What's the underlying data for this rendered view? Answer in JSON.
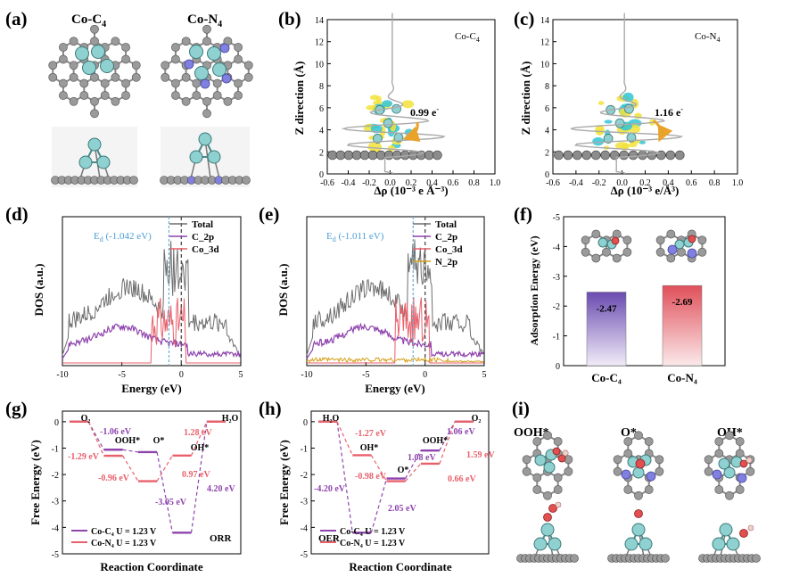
{
  "colors": {
    "purple": "#8e44ad",
    "red": "#e8606a",
    "gray_line": "#6e6e6e",
    "blue_dash": "#6baed6",
    "black_dash": "#555555",
    "orange": "#e9a32a",
    "yellow_iso": "#f2e23a",
    "cyan_iso": "#33c4d6",
    "atom_c": "#9a9a9a",
    "atom_co": "#8fd0d0",
    "atom_n": "#8080e0"
  },
  "panels": {
    "a": {
      "label": "(a)",
      "sub_left": "Co-C",
      "sub_left_sub": "4",
      "sub_right": "Co-N",
      "sub_right_sub": "4"
    },
    "b": {
      "label": "(b)",
      "tag": "Co-C",
      "tag_sub": "4",
      "charge": "0.99 e",
      "charge_sup": "-"
    },
    "c": {
      "label": "(c)",
      "tag": "Co-N",
      "tag_sub": "4",
      "charge": "1.16 e",
      "charge_sup": "-"
    },
    "d": {
      "label": "(d)",
      "ed_label": "E",
      "ed_sub": "d",
      "ed_value": " (-1.042 eV)"
    },
    "e": {
      "label": "(e)",
      "ed_label": "E",
      "ed_sub": "d",
      "ed_value": " (-1.011 eV)"
    },
    "f": {
      "label": "(f)"
    },
    "g": {
      "label": "(g)"
    },
    "h": {
      "label": "(h)"
    },
    "i": {
      "label": "(i)",
      "ads": [
        "OOH*",
        "O*",
        "OH*"
      ]
    }
  },
  "chart_data": [
    {
      "panel": "b",
      "type": "line",
      "xlabel": "Δρ (10⁻³ e Å⁻³)",
      "ylabel": "Z direction (Å)",
      "xlim": [
        -0.6,
        1.0
      ],
      "ylim": [
        0,
        14
      ],
      "x_ticks": [
        "-0.6",
        "-0.4",
        "-0.2",
        "0.0",
        "0.2",
        "0.4",
        "0.6",
        "0.8",
        "1.0"
      ],
      "y_ticks": [
        "0",
        "2",
        "4",
        "6",
        "8",
        "10",
        "12",
        "14"
      ],
      "annotation": "0.99 e⁻"
    },
    {
      "panel": "c",
      "type": "line",
      "xlabel": "Δρ (10⁻³ e/Å³)",
      "ylabel": "Z direction (Å)",
      "xlim": [
        -0.6,
        1.0
      ],
      "ylim": [
        0,
        14
      ],
      "x_ticks": [
        "-0.6",
        "-0.4",
        "-0.2",
        "0.0",
        "0.2",
        "0.4",
        "0.6",
        "0.8",
        "1.0"
      ],
      "y_ticks": [
        "0",
        "2",
        "4",
        "6",
        "8",
        "10",
        "12",
        "14"
      ],
      "annotation": "1.16 e⁻"
    },
    {
      "panel": "d",
      "type": "line",
      "xlabel": "Energy (eV)",
      "ylabel": "DOS (a.u.)",
      "xlim": [
        -10,
        5
      ],
      "x_ticks": [
        "-10",
        "-5",
        "0",
        "5"
      ],
      "series": [
        {
          "name": "Total"
        },
        {
          "name": "C_2p"
        },
        {
          "name": "Co_3d"
        }
      ],
      "d_band_center": -1.042
    },
    {
      "panel": "e",
      "type": "line",
      "xlabel": "Energy (eV)",
      "ylabel": "DOS (a.u.)",
      "xlim": [
        -10,
        5
      ],
      "x_ticks": [
        "-10",
        "-5",
        "0",
        "5"
      ],
      "series": [
        {
          "name": "Total"
        },
        {
          "name": "C_2p"
        },
        {
          "name": "Co_3d"
        },
        {
          "name": "N_2p"
        }
      ],
      "d_band_center": -1.011
    },
    {
      "panel": "f",
      "type": "bar",
      "ylabel": "Adsorption Energy (eV)",
      "ylim": [
        0,
        -5
      ],
      "y_ticks": [
        "0",
        "-1",
        "-2",
        "-3",
        "-4",
        "-5"
      ],
      "categories": [
        "Co-C₄",
        "Co-N₄"
      ],
      "values": [
        -2.47,
        -2.69
      ],
      "value_labels": [
        "-2.47",
        "-2.69"
      ]
    },
    {
      "panel": "g",
      "type": "line",
      "title": "ORR",
      "xlabel": "Reaction Coordinate",
      "ylabel": "Free Energy (eV)",
      "ylim": [
        -5,
        0.4
      ],
      "y_ticks": [
        "0",
        "-1",
        "-2",
        "-3",
        "-4",
        "-5"
      ],
      "step_labels": [
        "O₂",
        "OOH*",
        "O*",
        "OH*",
        "H₂O"
      ],
      "series": [
        {
          "name": "Co-C₄  U = 1.23 V",
          "values": [
            0,
            -1.06,
            -1.15,
            -4.2,
            0
          ]
        },
        {
          "name": "Co-N₄  U = 1.23 V",
          "values": [
            0,
            -1.29,
            -2.25,
            -1.28,
            0
          ]
        }
      ],
      "annotations": [
        "-1.06 eV",
        "-1.29 eV",
        "-0.96 eV",
        "1.28 eV",
        "0.97 eV",
        "-3.05 eV",
        "4.20 eV"
      ]
    },
    {
      "panel": "h",
      "type": "line",
      "title": "OER",
      "xlabel": "Reaction Coordinate",
      "ylabel": "Free Energy (eV)",
      "ylim": [
        -5,
        0.4
      ],
      "y_ticks": [
        "0",
        "-1",
        "-2",
        "-3",
        "-4",
        "-5"
      ],
      "step_labels": [
        "H₂O",
        "OH*",
        "O*",
        "OOH*",
        "O₂"
      ],
      "series": [
        {
          "name": "Co-C₄  U = 1.23 V",
          "values": [
            0,
            -4.2,
            -2.15,
            -1.09,
            0
          ]
        },
        {
          "name": "Co-N₄  U = 1.23 V",
          "values": [
            0,
            -1.27,
            -2.25,
            -1.59,
            0
          ]
        }
      ],
      "annotations": [
        "-1.27 eV",
        "-0.98 eV",
        "-4.20 eV",
        "2.05 eV",
        "1.08 eV",
        "1.06 eV",
        "0.66 eV",
        "1.59 eV"
      ]
    }
  ]
}
